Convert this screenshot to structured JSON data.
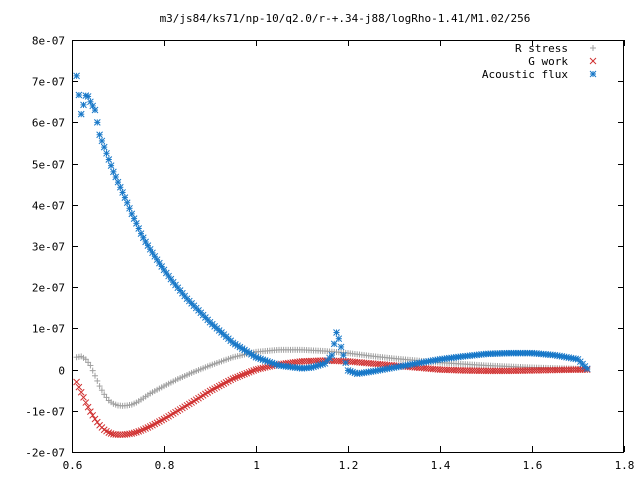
{
  "chart_data": {
    "type": "scatter",
    "title": "m3/js84/ks71/np-10/q2.0/r-+.34-j88/logRho-1.41/M1.02/256",
    "xlabel": "",
    "ylabel": "",
    "xlim": [
      0.6,
      1.8
    ],
    "ylim": [
      -2e-07,
      8e-07
    ],
    "x_ticks": [
      0.6,
      0.8,
      1.0,
      1.2,
      1.4,
      1.6,
      1.8
    ],
    "x_tick_labels": [
      "0.6",
      "0.8",
      "1",
      "1.2",
      "1.4",
      "1.6",
      "1.8"
    ],
    "y_ticks": [
      -2e-07,
      -1e-07,
      0,
      1e-07,
      2e-07,
      3e-07,
      4e-07,
      5e-07,
      6e-07,
      7e-07,
      8e-07
    ],
    "y_tick_labels": [
      "-2e-07",
      "-1e-07",
      "0",
      "1e-07",
      "2e-07",
      "3e-07",
      "4e-07",
      "5e-07",
      "6e-07",
      "7e-07",
      "8e-07"
    ],
    "grid": false,
    "legend_position": "top-right",
    "series": [
      {
        "name": "R stress",
        "marker": "plus",
        "color": "#a0a0a0",
        "x": [
          0.61,
          0.62,
          0.63,
          0.64,
          0.65,
          0.66,
          0.67,
          0.68,
          0.69,
          0.7,
          0.71,
          0.72,
          0.73,
          0.74,
          0.75,
          0.77,
          0.8,
          0.83,
          0.86,
          0.9,
          0.95,
          1.0,
          1.05,
          1.1,
          1.15,
          1.2,
          1.25,
          1.3,
          1.4,
          1.5,
          1.6,
          1.7,
          1.72
        ],
        "y": [
          3e-08,
          3.2e-08,
          2.5e-08,
          1e-08,
          -1.5e-08,
          -4e-08,
          -6e-08,
          -7.5e-08,
          -8.3e-08,
          -8.7e-08,
          -8.8e-08,
          -8.7e-08,
          -8.5e-08,
          -8e-08,
          -7.3e-08,
          -5.8e-08,
          -4e-08,
          -2.3e-08,
          -8e-09,
          1e-08,
          3e-08,
          4.3e-08,
          4.8e-08,
          4.8e-08,
          4.5e-08,
          4e-08,
          3.3e-08,
          2.7e-08,
          1.7e-08,
          1e-08,
          5e-09,
          2e-09,
          0
        ]
      },
      {
        "name": "G work",
        "marker": "cross",
        "color": "#d03030",
        "x": [
          0.61,
          0.62,
          0.63,
          0.64,
          0.65,
          0.66,
          0.67,
          0.68,
          0.69,
          0.7,
          0.71,
          0.72,
          0.73,
          0.74,
          0.75,
          0.77,
          0.8,
          0.83,
          0.86,
          0.9,
          0.95,
          1.0,
          1.05,
          1.1,
          1.15,
          1.2,
          1.25,
          1.3,
          1.35,
          1.4,
          1.45,
          1.5,
          1.55,
          1.6,
          1.65,
          1.7,
          1.72
        ],
        "y": [
          -3e-08,
          -5.5e-08,
          -8e-08,
          -1.02e-07,
          -1.2e-07,
          -1.35e-07,
          -1.46e-07,
          -1.53e-07,
          -1.57e-07,
          -1.58e-07,
          -1.58e-07,
          -1.57e-07,
          -1.55e-07,
          -1.52e-07,
          -1.48e-07,
          -1.38e-07,
          -1.2e-07,
          -1e-07,
          -8e-08,
          -5.2e-08,
          -2.2e-08,
          0,
          1.3e-08,
          2e-08,
          2.2e-08,
          2e-08,
          1.5e-08,
          1e-08,
          5e-09,
          0,
          -2e-09,
          -3e-09,
          -3e-09,
          -2e-09,
          -1e-09,
          0,
          0
        ]
      },
      {
        "name": "Acoustic flux",
        "marker": "star",
        "color": "#1878c8",
        "x": [
          0.61,
          0.62,
          0.63,
          0.635,
          0.64,
          0.65,
          0.66,
          0.67,
          0.68,
          0.69,
          0.7,
          0.71,
          0.72,
          0.73,
          0.74,
          0.75,
          0.76,
          0.77,
          0.78,
          0.8,
          0.82,
          0.85,
          0.88,
          0.9,
          0.95,
          1.0,
          1.05,
          1.1,
          1.12,
          1.15,
          1.165,
          1.175,
          1.18,
          1.19,
          1.2,
          1.22,
          1.25,
          1.3,
          1.35,
          1.4,
          1.45,
          1.5,
          1.55,
          1.6,
          1.65,
          1.7,
          1.72
        ],
        "y": [
          7.13e-07,
          6.2e-07,
          6.65e-07,
          6.63e-07,
          6.5e-07,
          6.3e-07,
          5.7e-07,
          5.4e-07,
          5.1e-07,
          4.8e-07,
          4.55e-07,
          4.3e-07,
          4.05e-07,
          3.78e-07,
          3.55e-07,
          3.3e-07,
          3.1e-07,
          2.92e-07,
          2.75e-07,
          2.42e-07,
          2.12e-07,
          1.72e-07,
          1.38e-07,
          1.15e-07,
          6.5e-08,
          3e-08,
          1e-08,
          3e-09,
          5e-09,
          1.5e-08,
          3.5e-08,
          9e-08,
          7.5e-08,
          3.5e-08,
          -2e-09,
          -1e-08,
          -5e-09,
          5e-09,
          1.5e-08,
          2.5e-08,
          3.2e-08,
          3.8e-08,
          4e-08,
          4e-08,
          3.5e-08,
          2.5e-08,
          2e-09
        ]
      }
    ]
  }
}
